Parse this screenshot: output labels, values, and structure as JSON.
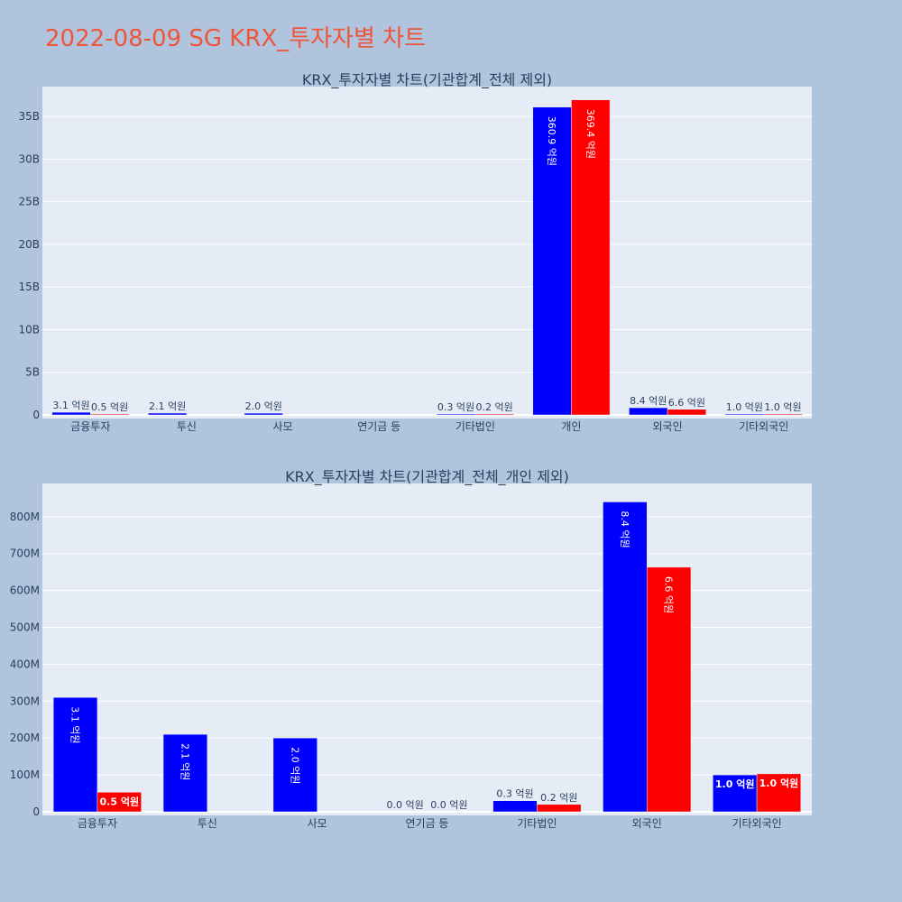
{
  "main_title": "2022-08-09 SG KRX_투자자별 차트",
  "colors": {
    "series_a": "#0000ff",
    "series_b": "#ff0000",
    "plot_bg": "#e5ecf6",
    "page_bg": "#b0c4de",
    "title": "#ef553b"
  },
  "chart_data": [
    {
      "type": "bar",
      "title": "KRX_투자자별 차트(기관합계_전체 제외)",
      "categories": [
        "금융투자",
        "투신",
        "사모",
        "연기금 등",
        "기타법인",
        "개인",
        "외국인",
        "기타외국인"
      ],
      "series": [
        {
          "values": [
            310000000,
            210000000,
            200000000,
            0,
            30000000,
            36090000000,
            840000000,
            100000000
          ],
          "labels": [
            "3.1 억원",
            "2.1 억원",
            "2.0 억원",
            "",
            "0.3 억원",
            "360.9 억원",
            "8.4 억원",
            "1.0 억원"
          ]
        },
        {
          "values": [
            50000000,
            0,
            0,
            0,
            20000000,
            36940000000,
            660000000,
            100000000
          ],
          "labels": [
            "0.5 억원",
            "",
            "",
            "",
            "0.2 억원",
            "369.4 억원",
            "6.6 억원",
            "1.0 억원"
          ]
        }
      ],
      "ylim": [
        0,
        38500000000
      ],
      "yticks": [
        0,
        5000000000,
        10000000000,
        15000000000,
        20000000000,
        25000000000,
        30000000000,
        35000000000
      ],
      "ytick_labels": [
        "0",
        "5B",
        "10B",
        "15B",
        "20B",
        "25B",
        "30B",
        "35B"
      ],
      "grid": true
    },
    {
      "type": "bar",
      "title": "KRX_투자자별 차트(기관합계_전체_개인 제외)",
      "categories": [
        "금융투자",
        "투신",
        "사모",
        "연기금 등",
        "기타법인",
        "외국인",
        "기타외국인"
      ],
      "series": [
        {
          "values": [
            310000000,
            210000000,
            200000000,
            0,
            30000000,
            840000000,
            100000000
          ],
          "labels": [
            "3.1 억원",
            "2.1 억원",
            "2.0 억원",
            "0.0 억원",
            "0.3 억원",
            "8.4 억원",
            "1.0 억원"
          ]
        },
        {
          "values": [
            53000000,
            0,
            0,
            0,
            20000000,
            663000000,
            103000000
          ],
          "labels": [
            "0.5 억원",
            "",
            "",
            "0.0 억원",
            "0.2 억원",
            "6.6 억원",
            "1.0 억원"
          ]
        }
      ],
      "ylim": [
        0,
        890000000
      ],
      "yticks": [
        0,
        100000000,
        200000000,
        300000000,
        400000000,
        500000000,
        600000000,
        700000000,
        800000000
      ],
      "ytick_labels": [
        "0",
        "100M",
        "200M",
        "300M",
        "400M",
        "500M",
        "600M",
        "700M",
        "800M"
      ],
      "grid": true
    }
  ]
}
